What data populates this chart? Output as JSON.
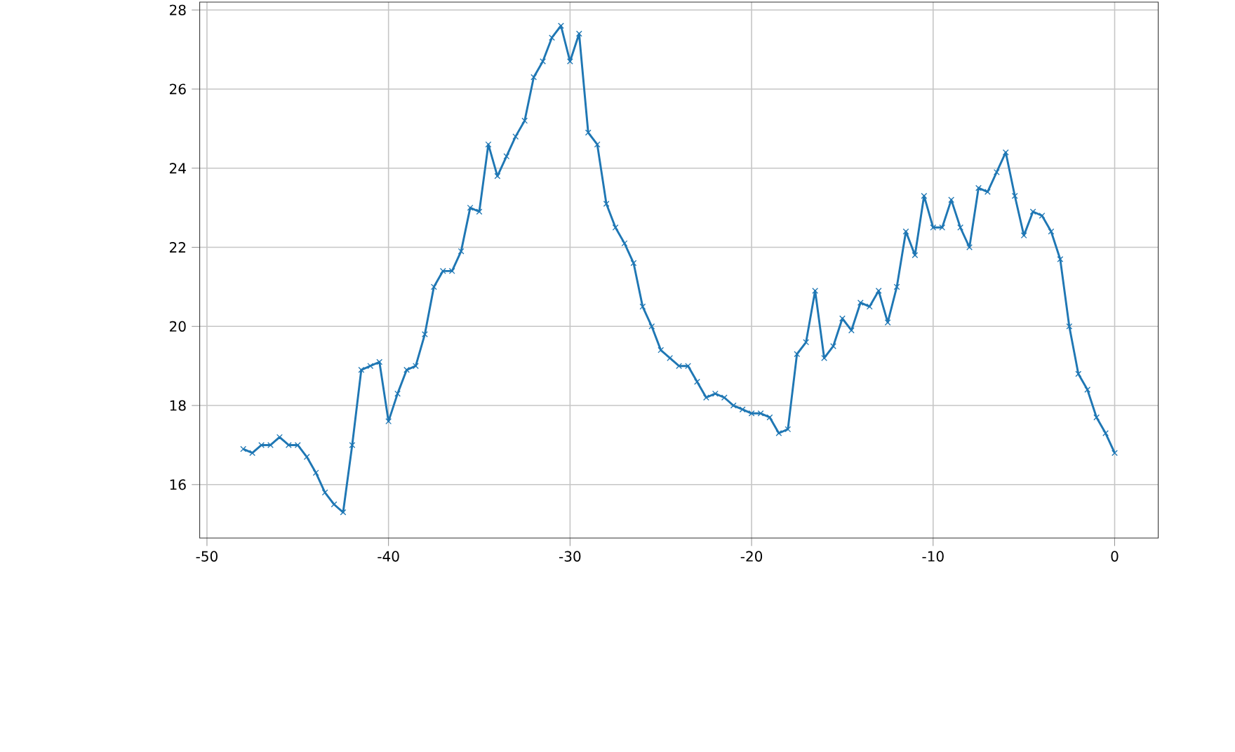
{
  "chart_data": {
    "type": "line",
    "x": [
      -48,
      -47.5,
      -47,
      -46.5,
      -46,
      -45.5,
      -45,
      -44.5,
      -44,
      -43.5,
      -43,
      -42.5,
      -42,
      -41.5,
      -41,
      -40.5,
      -40,
      -39.5,
      -39,
      -38.5,
      -38,
      -37.5,
      -37,
      -36.5,
      -36,
      -35.5,
      -35,
      -34.5,
      -34,
      -33.5,
      -33,
      -32.5,
      -32,
      -31.5,
      -31,
      -30.5,
      -30,
      -29.5,
      -29,
      -28.5,
      -28,
      -27.5,
      -27,
      -26.5,
      -26,
      -25.5,
      -25,
      -24.5,
      -24,
      -23.5,
      -23,
      -22.5,
      -22,
      -21.5,
      -21,
      -20.5,
      -20,
      -19.5,
      -19,
      -18.5,
      -18,
      -17.5,
      -17,
      -16.5,
      -16,
      -15.5,
      -15,
      -14.5,
      -14,
      -13.5,
      -13,
      -12.5,
      -12,
      -11.5,
      -11,
      -10.5,
      -10,
      -9.5,
      -9,
      -8.5,
      -8,
      -7.5,
      -7,
      -6.5,
      -6,
      -5.5,
      -5,
      -4.5,
      -4,
      -3.5,
      -3,
      -2.5,
      -2,
      -1.5,
      -1,
      -0.5,
      0
    ],
    "series": [
      {
        "color": "#1f77b4",
        "values": [
          16.9,
          16.8,
          17.0,
          17.0,
          17.2,
          17.0,
          17.0,
          16.7,
          16.3,
          15.8,
          15.5,
          15.3,
          17.0,
          18.9,
          19.0,
          19.1,
          17.6,
          18.3,
          18.9,
          19.0,
          19.8,
          21.0,
          21.4,
          21.4,
          21.9,
          23.0,
          22.9,
          24.6,
          23.8,
          24.3,
          24.8,
          25.2,
          26.3,
          26.7,
          27.3,
          27.6,
          26.7,
          27.4,
          24.9,
          24.6,
          23.1,
          22.5,
          22.1,
          21.6,
          20.5,
          20.0,
          19.4,
          19.2,
          19.0,
          19.0,
          18.6,
          18.2,
          18.3,
          18.2,
          18.0,
          17.9,
          17.8,
          17.8,
          17.7,
          17.3,
          17.4,
          19.3,
          19.6,
          20.9,
          19.2,
          19.5,
          20.2,
          19.9,
          20.6,
          20.5,
          20.9,
          20.1,
          21.0,
          22.4,
          21.8,
          23.3,
          22.5,
          22.5,
          23.2,
          22.5,
          22.0,
          23.5,
          23.4,
          23.9,
          24.4,
          23.3,
          22.3,
          22.9,
          22.8,
          22.4,
          21.7,
          20.0,
          18.8,
          18.4,
          17.7,
          17.3,
          16.8
        ]
      }
    ],
    "xlim": [
      -50.4,
      2.4
    ],
    "ylim": [
      14.65,
      28.2
    ],
    "xticks": [
      -50,
      -40,
      -30,
      -20,
      -10,
      0
    ],
    "yticks": [
      16,
      18,
      20,
      22,
      24,
      26,
      28
    ],
    "grid": true,
    "marker": "cross",
    "line_style": "solid"
  }
}
